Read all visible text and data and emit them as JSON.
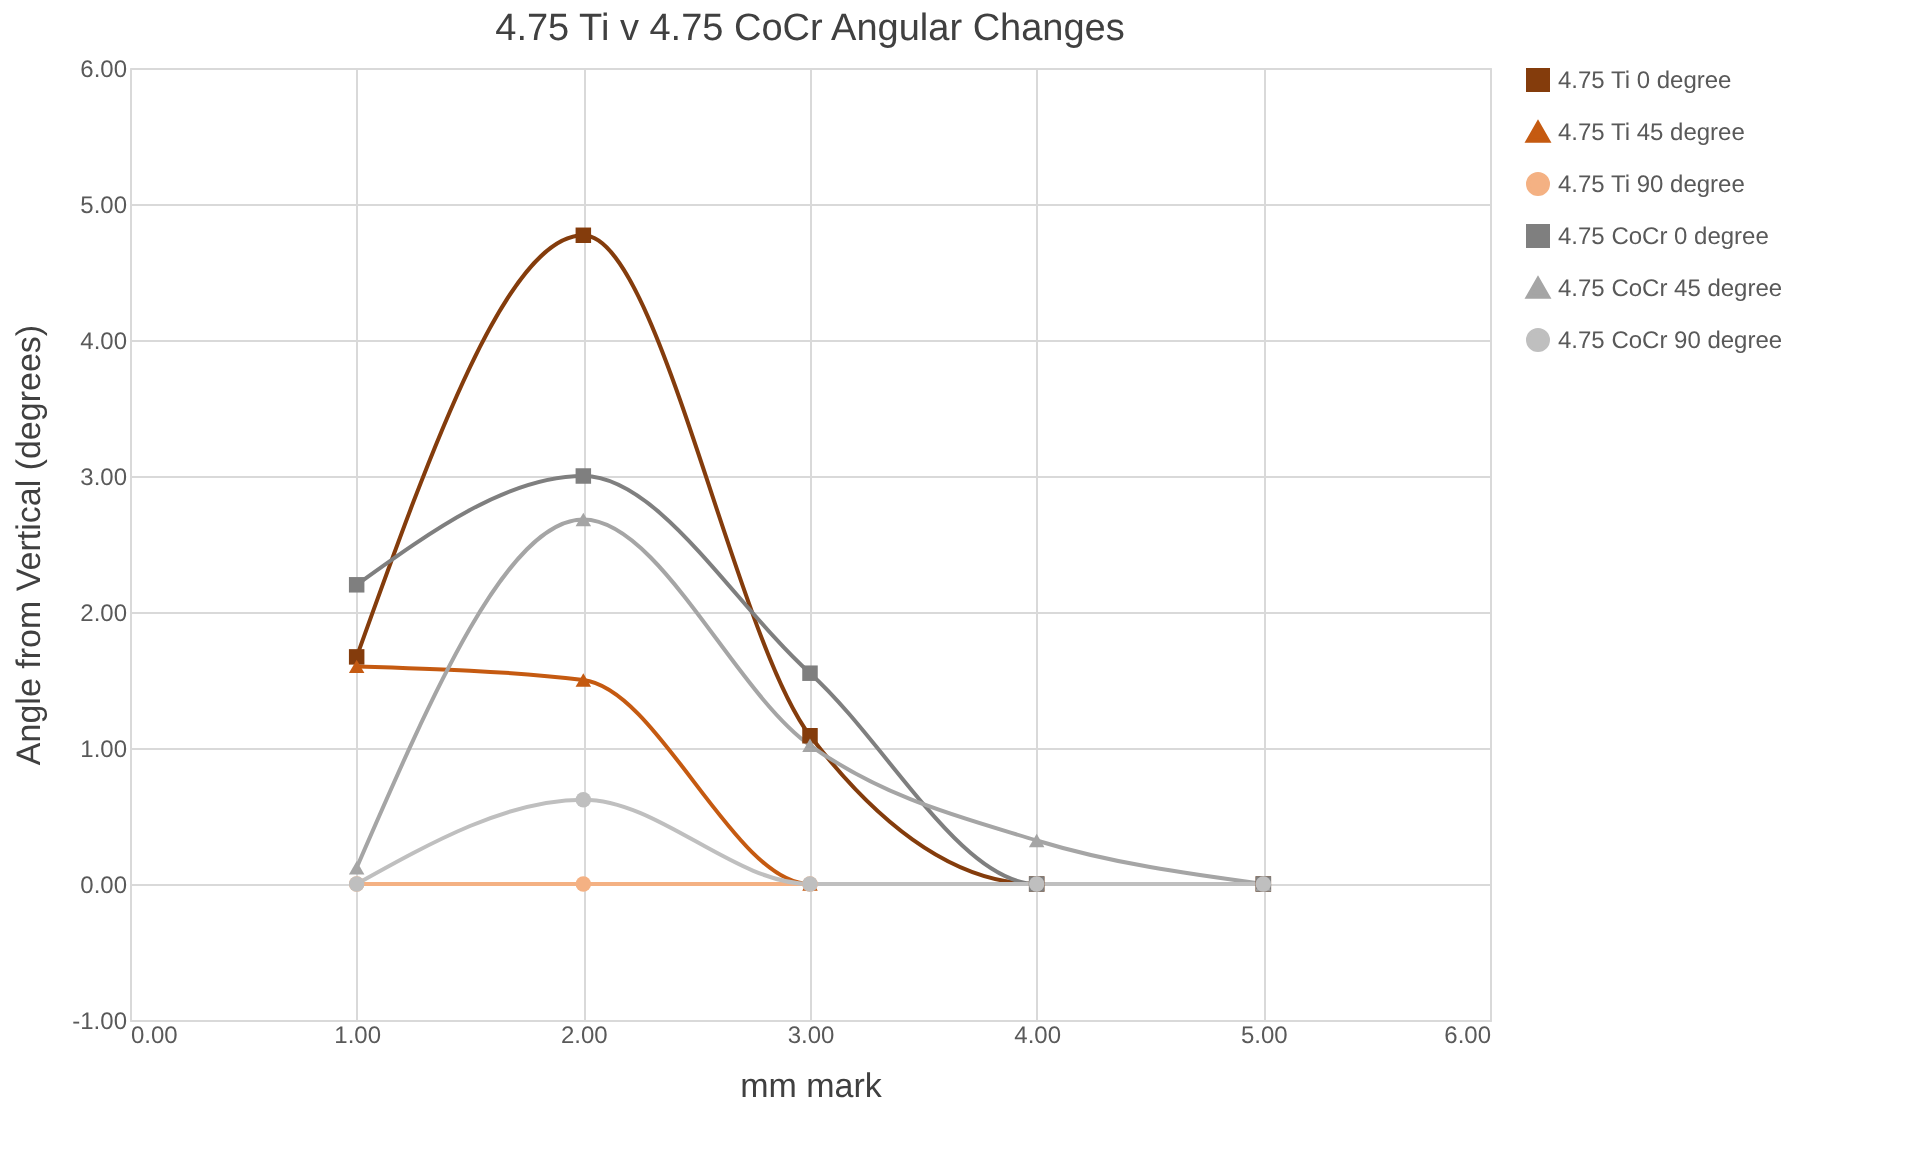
{
  "chart_data": {
    "type": "line",
    "title": "4.75 Ti v 4.75 CoCr Angular Changes",
    "xlabel": "mm mark",
    "ylabel": "Angle from Vertical (degrees)",
    "x": [
      1,
      2,
      3,
      4,
      5
    ],
    "series": [
      {
        "name": "4.75 Ti 0 degree",
        "color": "#843c0c",
        "marker": "square",
        "values": [
          1.67,
          4.77,
          1.09,
          0,
          0
        ]
      },
      {
        "name": "4.75 Ti 45 degree",
        "color": "#c55a11",
        "marker": "triangle",
        "values": [
          1.6,
          1.5,
          0,
          0,
          0
        ]
      },
      {
        "name": "4.75 Ti 90 degree",
        "color": "#f4b183",
        "marker": "circle",
        "values": [
          0,
          0,
          0,
          0,
          0
        ]
      },
      {
        "name": "4.75 CoCr 0 degree",
        "color": "#7f7f7f",
        "marker": "square",
        "values": [
          2.2,
          3.0,
          1.55,
          0,
          0
        ]
      },
      {
        "name": "4.75 CoCr 45 degree",
        "color": "#a5a5a5",
        "marker": "triangle",
        "values": [
          0.12,
          2.68,
          1.02,
          0.32,
          0
        ]
      },
      {
        "name": "4.75 CoCr 90 degree",
        "color": "#bfbfbf",
        "marker": "circle",
        "values": [
          0,
          0.62,
          0,
          0,
          0
        ]
      }
    ],
    "xlim": [
      0,
      6
    ],
    "ylim": [
      -1,
      6
    ],
    "xticks": [
      {
        "value": 0,
        "label": "0.00"
      },
      {
        "value": 1,
        "label": "1.00"
      },
      {
        "value": 2,
        "label": "2.00"
      },
      {
        "value": 3,
        "label": "3.00"
      },
      {
        "value": 4,
        "label": "4.00"
      },
      {
        "value": 5,
        "label": "5.00"
      },
      {
        "value": 6,
        "label": "6.00"
      }
    ],
    "yticks": [
      {
        "value": -1,
        "label": "-1.00"
      },
      {
        "value": 0,
        "label": "0.00"
      },
      {
        "value": 1,
        "label": "1.00"
      },
      {
        "value": 2,
        "label": "2.00"
      },
      {
        "value": 3,
        "label": "3.00"
      },
      {
        "value": 4,
        "label": "4.00"
      },
      {
        "value": 5,
        "label": "5.00"
      },
      {
        "value": 6,
        "label": "6.00"
      }
    ],
    "grid": true,
    "legend": "right",
    "line_style": "solid"
  }
}
